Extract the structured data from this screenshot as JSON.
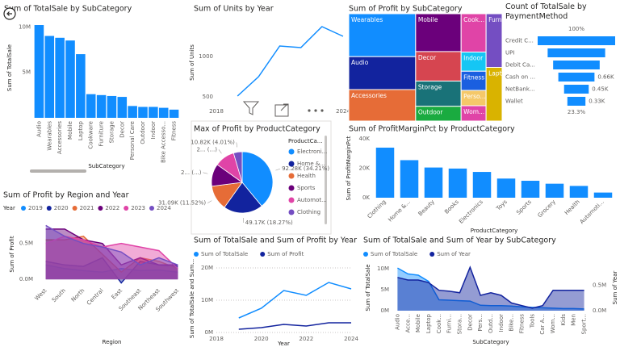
{
  "chart_data": [
    {
      "type": "bar",
      "title": "Sum of TotalSale by SubCategory",
      "x_label": "SubCategory",
      "y_label": "Sum of TotalSale",
      "categories": [
        "Audio",
        "Wearables",
        "Accessories",
        "Mobile",
        "Laptop",
        "Cookware",
        "Furniture",
        "Storage",
        "Decor",
        "Personal Care",
        "Outdoor",
        "Indoor",
        "Bike Accesso...",
        "Fitness"
      ],
      "values": [
        10200000,
        9000000,
        8800000,
        8500000,
        7000000,
        2600000,
        2500000,
        2400000,
        2300000,
        1300000,
        1200000,
        1200000,
        1100000,
        900000
      ],
      "color": "#118DFF",
      "ylim": [
        0,
        11000000
      ],
      "yticks": [
        {
          "value": 5000000,
          "label": "5M"
        },
        {
          "value": 10000000,
          "label": "10M"
        }
      ]
    },
    {
      "type": "line",
      "title": "Sum of Units by Year",
      "y_label": "Sum of Units",
      "x": [
        2019,
        2020,
        2021,
        2022,
        2023,
        2024
      ],
      "values": [
        510,
        750,
        1130,
        1110,
        1370,
        1250
      ],
      "color": "#118DFF",
      "xlim": [
        2018,
        2024
      ],
      "xticks": [
        2018,
        2024
      ],
      "ylim": [
        400,
        1450
      ],
      "yticks": [
        500,
        1000
      ]
    },
    {
      "type": "treemap",
      "title": "Sum of Profit by SubCategory",
      "categories": [
        "Wearables",
        "Mobile",
        "Cook...",
        "Furni...",
        "Lapt...",
        "Audio",
        "Decor",
        "Indoor",
        "Storage",
        "Fitness",
        "Accessories",
        "Outdoor",
        "Perso...",
        "Wom..."
      ],
      "values": [
        300000,
        180000,
        100000,
        90000,
        90000,
        230000,
        140000,
        50000,
        120000,
        50000,
        220000,
        70000,
        40000,
        40000
      ],
      "colors": [
        "#118DFF",
        "#6B007B",
        "#E044A7",
        "#744EC2",
        "#D9B300",
        "#12239E",
        "#D64550",
        "#15C6F4",
        "#197278",
        "#1A5FE0",
        "#E66C37",
        "#1AAB40",
        "#F5C869",
        "#E044A7"
      ]
    },
    {
      "type": "funnel",
      "title": "Count of TotalSale by PaymentMethod",
      "categories": [
        "Credit C...",
        "UPI",
        "Debit Ca...",
        "Cash on ...",
        "NetBank...",
        "Wallet"
      ],
      "values": [
        1415,
        1050,
        850,
        660,
        450,
        330
      ],
      "value_labels": [
        null,
        null,
        null,
        "0.66K",
        "0.45K",
        "0.33K"
      ],
      "first_label": "100%",
      "last_label": "23.3%",
      "color": "#118DFF"
    },
    {
      "type": "pie",
      "title": "Max of Profit by ProductCategory",
      "legend_title": "ProductCa...",
      "categories": [
        "Electroni...",
        "Home &...",
        "Health",
        "Sports",
        "Automot...",
        "Clothing"
      ],
      "values": [
        92280,
        49170,
        31090,
        28000,
        25000,
        10820
      ],
      "value_labels": [
        "92.28K (34.21%)",
        "49.17K (18.27%)",
        "31.09K (11.52%)",
        "2... (...)",
        "2... (...)",
        "10.82K (4.01%)"
      ],
      "colors": [
        "#118DFF",
        "#12239E",
        "#E66C37",
        "#6B007B",
        "#E044A7",
        "#744EC2"
      ]
    },
    {
      "type": "bar",
      "title": "Sum of ProfitMarginPct by ProductCategory",
      "x_label": "ProductCategory",
      "y_label": "Sum of ProfitMarginPct",
      "categories": [
        "Clothing",
        "Home &...",
        "Beauty",
        "Books",
        "Electronics",
        "Toys",
        "Sports",
        "Grocery",
        "Health",
        "Automoti..."
      ],
      "values": [
        34000,
        25500,
        20500,
        19800,
        17500,
        13000,
        11500,
        9500,
        8000,
        3500
      ],
      "color": "#118DFF",
      "ylim": [
        0,
        40000
      ],
      "yticks": [
        {
          "value": 0,
          "label": "0K"
        },
        {
          "value": 20000,
          "label": "20K"
        },
        {
          "value": 40000,
          "label": "40K"
        }
      ]
    },
    {
      "type": "area",
      "title": "Sum of Profit by Region and Year",
      "legend_title": "Year",
      "x_label": "Region",
      "y_label": "Sum of Profit",
      "categories": [
        "West",
        "South",
        "North",
        "Central",
        "East",
        "Southeast",
        "Northeast",
        "Southwest"
      ],
      "series": [
        {
          "name": "2019",
          "color": "#118DFF",
          "values": [
            200000,
            150000,
            120000,
            100000,
            150000,
            120000,
            130000,
            100000
          ]
        },
        {
          "name": "2020",
          "color": "#12239E",
          "values": [
            250000,
            200000,
            180000,
            300000,
            -50000,
            250000,
            200000,
            180000
          ]
        },
        {
          "name": "2021",
          "color": "#E66C37",
          "values": [
            550000,
            550000,
            600000,
            350000,
            100000,
            300000,
            250000,
            150000
          ]
        },
        {
          "name": "2022",
          "color": "#6B007B",
          "values": [
            700000,
            700000,
            550000,
            500000,
            200000,
            300000,
            200000,
            200000
          ]
        },
        {
          "name": "2023",
          "color": "#E044A7",
          "values": [
            500000,
            600000,
            550000,
            450000,
            500000,
            450000,
            400000,
            150000
          ]
        },
        {
          "name": "2024",
          "color": "#744EC2",
          "values": [
            750000,
            600000,
            500000,
            450000,
            380000,
            200000,
            300000,
            200000
          ]
        }
      ],
      "ylim": [
        -100000,
        800000
      ],
      "yticks": [
        {
          "value": 0,
          "label": "0.0M"
        },
        {
          "value": 500000,
          "label": "0.5M"
        }
      ]
    },
    {
      "type": "line",
      "title": "Sum of TotalSale and Sum of Profit by Year",
      "x_label": "Year",
      "y_label": "Sum of TotalSale and Sum...",
      "x": [
        2019,
        2020,
        2021,
        2022,
        2023,
        2024
      ],
      "series": [
        {
          "name": "Sum of TotalSale",
          "color": "#118DFF",
          "values": [
            4500000,
            7500000,
            13000000,
            11500000,
            15500000,
            13500000
          ]
        },
        {
          "name": "Sum of Profit",
          "color": "#12239E",
          "values": [
            1000000,
            1500000,
            2500000,
            2000000,
            3000000,
            3000000
          ]
        }
      ],
      "xlim": [
        2018,
        2024
      ],
      "xticks": [
        2018,
        2020,
        2022,
        2024
      ],
      "ylim": [
        0,
        21000000
      ],
      "yticks": [
        {
          "value": 0,
          "label": "0M"
        },
        {
          "value": 10000000,
          "label": "10M"
        },
        {
          "value": 20000000,
          "label": "20M"
        }
      ],
      "grid": true
    },
    {
      "type": "area",
      "title": "Sum of TotalSale and Sum of Year by SubCategory",
      "x_label": "SubCategory",
      "y_label": "Sum of TotalSale",
      "y2_label": "Sum of Year",
      "categories": [
        "Audio",
        "Acce...",
        "Mobile",
        "Laptop",
        "Cook...",
        "Furni...",
        "Stora...",
        "Decor",
        "Pers...",
        "Outd...",
        "Indoor",
        "Bike...",
        "Fitness",
        "Tools",
        "Car A...",
        "Wom...",
        "Kids",
        "Men",
        "Sport..."
      ],
      "series": [
        {
          "name": "Sum of TotalSale",
          "color": "#118DFF",
          "values": [
            10200000,
            8800000,
            8500000,
            7000000,
            2600000,
            2500000,
            2400000,
            2300000,
            1300000,
            1200000,
            1200000,
            1100000,
            900000,
            800000,
            700000,
            600000,
            500000,
            500000,
            400000
          ]
        },
        {
          "name": "Sum of Year",
          "color": "#12239E",
          "axis": "y2",
          "values": [
            650000,
            600000,
            600000,
            550000,
            400000,
            380000,
            350000,
            850000,
            300000,
            350000,
            300000,
            150000,
            100000,
            50000,
            100000,
            400000,
            400000,
            400000,
            400000
          ]
        }
      ],
      "ylim": [
        0,
        11000000
      ],
      "yticks": [
        {
          "value": 0,
          "label": "0M"
        },
        {
          "value": 5000000,
          "label": "5M"
        },
        {
          "value": 10000000,
          "label": "10M"
        }
      ],
      "y2lim": [
        0,
        900000
      ],
      "y2ticks": [
        {
          "value": 0,
          "label": "0.0M"
        },
        {
          "value": 500000,
          "label": "0.5M"
        }
      ]
    }
  ]
}
